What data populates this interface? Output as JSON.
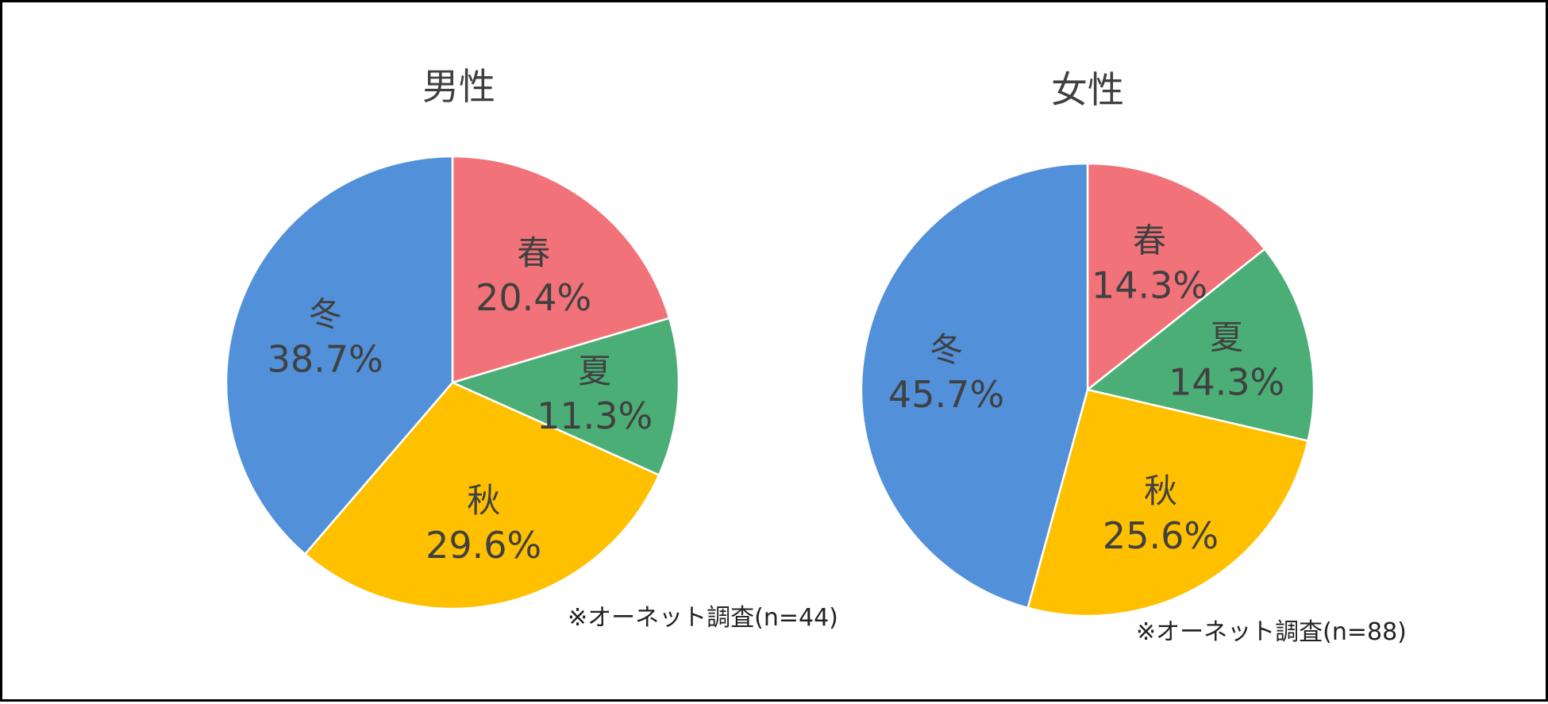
{
  "chart_data": [
    {
      "type": "pie",
      "title": "男性",
      "categories": [
        "春",
        "夏",
        "秋",
        "冬"
      ],
      "values": [
        20.4,
        11.3,
        29.6,
        38.7
      ],
      "labels": [
        "20.4%",
        "11.3%",
        "29.6%",
        "38.7%"
      ],
      "colors": [
        "#F2727A",
        "#4BAE77",
        "#FFC000",
        "#5290D9"
      ],
      "start_angle_deg": 0,
      "direction": "clockwise",
      "note": "※オーネット調査(n=44)",
      "legend": "none"
    },
    {
      "type": "pie",
      "title": "女性",
      "categories": [
        "春",
        "夏",
        "秋",
        "冬"
      ],
      "values": [
        14.3,
        14.3,
        25.6,
        45.7
      ],
      "labels": [
        "14.3%",
        "14.3%",
        "25.6%",
        "45.7%"
      ],
      "colors": [
        "#F2727A",
        "#4BAE77",
        "#FFC000",
        "#5290D9"
      ],
      "start_angle_deg": 0,
      "direction": "clockwise",
      "note": "※オーネット調査(n=88)",
      "legend": "none"
    }
  ]
}
